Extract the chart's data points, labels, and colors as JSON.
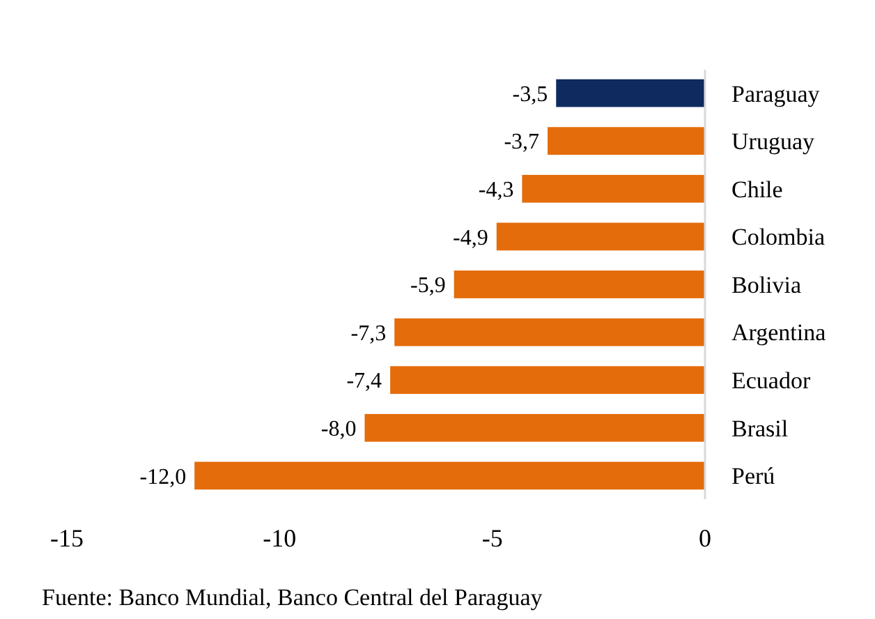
{
  "chart_data": {
    "type": "bar",
    "orientation": "horizontal",
    "categories": [
      "Paraguay",
      "Uruguay",
      "Chile",
      "Colombia",
      "Bolivia",
      "Argentina",
      "Ecuador",
      "Brasil",
      "Perú"
    ],
    "values": [
      -3.5,
      -3.7,
      -4.3,
      -4.9,
      -5.9,
      -7.3,
      -7.4,
      -8.0,
      -12.0
    ],
    "colors": [
      "#0e2a5e",
      "#e46c0a",
      "#e46c0a",
      "#e46c0a",
      "#e46c0a",
      "#e46c0a",
      "#e46c0a",
      "#e46c0a",
      "#e46c0a"
    ],
    "value_labels": [
      "-3,5",
      "-3,7",
      "-4,3",
      "-4,9",
      "-5,9",
      "-7,3",
      "-7,4",
      "-8,0",
      "-12,0"
    ],
    "xlim": [
      -15,
      0
    ],
    "xticks": [
      -15,
      -10,
      -5,
      0
    ],
    "grid": false,
    "annotations": [
      "Fuente: Banco Mundial, Banco Central del Paraguay"
    ]
  }
}
